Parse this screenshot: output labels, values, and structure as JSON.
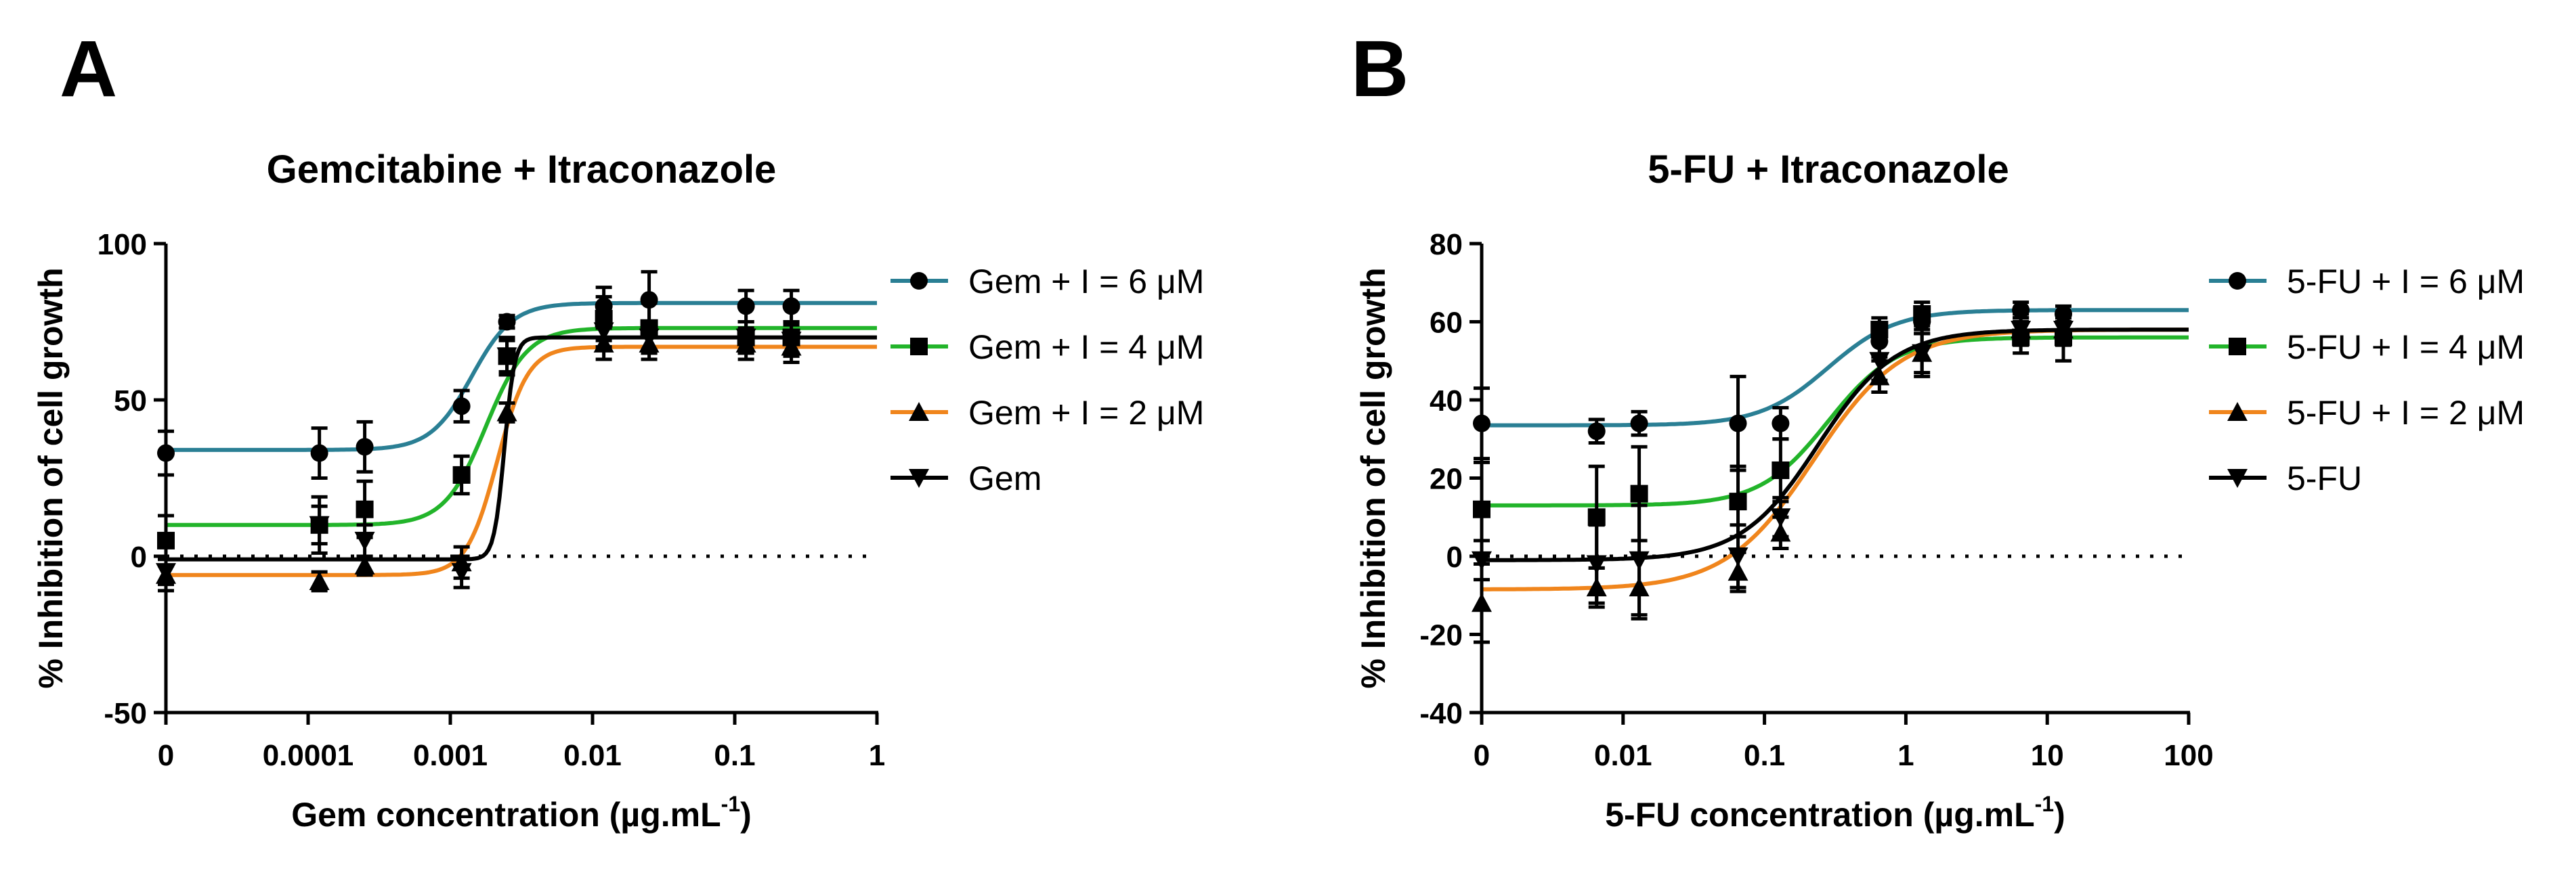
{
  "panels": [
    {
      "letter": "A"
    },
    {
      "letter": "B"
    }
  ],
  "chart_data": [
    {
      "type": "line",
      "panel": "A",
      "title": "Gemcitabine + Itraconazole",
      "xlabel": "Gem concentration (µg.mL",
      "xlabel_sup": "-1",
      "xlabel_close": ")",
      "ylabel": "% Inhibition of cell growth",
      "xscale": "log",
      "xlim": [
        1e-05,
        1
      ],
      "ylim": [
        -50,
        100
      ],
      "yticks": [
        -50,
        0,
        50,
        100
      ],
      "xticks": [
        {
          "value": 1e-05,
          "label": "0"
        },
        {
          "value": 0.0001,
          "label": "0.0001"
        },
        {
          "value": 0.001,
          "label": "0.001"
        },
        {
          "value": 0.01,
          "label": "0.01"
        },
        {
          "value": 0.1,
          "label": "0.1"
        },
        {
          "value": 1,
          "label": "1"
        }
      ],
      "reference_line": 0,
      "legend_position": "right",
      "series": [
        {
          "name": "Gem + I = 6 μM",
          "color": "#2a7f94",
          "marker": "circle",
          "x": [
            1e-05,
            0.00012,
            0.00025,
            0.0012,
            0.0025,
            0.012,
            0.025,
            0.12,
            0.25
          ],
          "y": [
            33,
            33,
            35,
            48,
            75,
            80,
            82,
            80,
            80
          ],
          "err": [
            7,
            8,
            8,
            5,
            2,
            6,
            9,
            5,
            5
          ],
          "fit": {
            "bottom": 34,
            "top": 81,
            "logEC50": -2.85,
            "hill": 3
          }
        },
        {
          "name": "Gem + I = 4 μM",
          "color": "#22b42a",
          "marker": "square",
          "x": [
            1e-05,
            0.00012,
            0.00025,
            0.0012,
            0.0025,
            0.012,
            0.025,
            0.12,
            0.25
          ],
          "y": [
            5,
            10,
            15,
            26,
            64,
            76,
            73,
            70,
            70
          ],
          "err": [
            8,
            9,
            9,
            6,
            5,
            7,
            8,
            5,
            5
          ],
          "fit": {
            "bottom": 10,
            "top": 73,
            "logEC50": -2.75,
            "hill": 3
          }
        },
        {
          "name": "Gem + I = 2 μM",
          "color": "#f0851c",
          "marker": "triangle",
          "x": [
            1e-05,
            0.00012,
            0.00025,
            0.0012,
            0.0025,
            0.012,
            0.025,
            0.12,
            0.25
          ],
          "y": [
            -6,
            -8,
            -3,
            -2,
            46,
            68,
            68,
            68,
            67
          ],
          "err": [
            5,
            3,
            3,
            5,
            3,
            5,
            5,
            5,
            5
          ],
          "fit": {
            "bottom": -6,
            "top": 67,
            "logEC50": -2.67,
            "hill": 4
          }
        },
        {
          "name": "Gem",
          "color": "#000000",
          "marker": "inverted-triangle",
          "x": [
            1e-05,
            0.00012,
            0.00025,
            0.0012,
            0.0025,
            0.012,
            0.025,
            0.12,
            0.25
          ],
          "y": [
            -5,
            10,
            5,
            -5,
            64,
            72,
            70,
            70,
            69
          ],
          "err": [
            4,
            6,
            5,
            5,
            6,
            5,
            5,
            5,
            5
          ],
          "fit": {
            "bottom": -1,
            "top": 70,
            "logEC50": -2.62,
            "hill": 12
          }
        }
      ]
    },
    {
      "type": "line",
      "panel": "B",
      "title": "5-FU + Itraconazole",
      "xlabel": "5-FU concentration  (µg.mL",
      "xlabel_sup": "-1",
      "xlabel_close": ")",
      "ylabel": "% Inhibition of cell growth",
      "xscale": "log",
      "xlim": [
        0.001,
        100
      ],
      "ylim": [
        -40,
        80
      ],
      "yticks": [
        -40,
        -20,
        0,
        20,
        40,
        60,
        80
      ],
      "xticks": [
        {
          "value": 0.001,
          "label": "0"
        },
        {
          "value": 0.01,
          "label": "0.01"
        },
        {
          "value": 0.1,
          "label": "0.1"
        },
        {
          "value": 1,
          "label": "1"
        },
        {
          "value": 10,
          "label": "10"
        },
        {
          "value": 100,
          "label": "100"
        }
      ],
      "reference_line": 0,
      "legend_position": "right",
      "series": [
        {
          "name": "5-FU + I = 6 μM",
          "color": "#2a7f94",
          "marker": "circle",
          "x": [
            0.001,
            0.0065,
            0.013,
            0.065,
            0.13,
            0.65,
            1.3,
            6.5,
            13
          ],
          "y": [
            34,
            32,
            34,
            34,
            34,
            55,
            60,
            63,
            62
          ],
          "err": [
            9,
            3,
            3,
            12,
            4,
            4,
            3,
            2,
            2
          ],
          "fit": {
            "bottom": 33.5,
            "top": 63,
            "logEC50": -0.55,
            "hill": 1.8
          }
        },
        {
          "name": "5-FU + I = 4 μM",
          "color": "#22b42a",
          "marker": "square",
          "x": [
            0.001,
            0.0065,
            0.013,
            0.065,
            0.13,
            0.65,
            1.3,
            6.5,
            13
          ],
          "y": [
            12,
            10,
            16,
            14,
            22,
            58,
            62,
            56,
            56
          ],
          "err": [
            12,
            13,
            12,
            9,
            8,
            3,
            3,
            4,
            6
          ],
          "fit": {
            "bottom": 13,
            "top": 56,
            "logEC50": -0.55,
            "hill": 1.8
          }
        },
        {
          "name": "5-FU + I = 2 μM",
          "color": "#f0851c",
          "marker": "triangle",
          "x": [
            0.001,
            0.0065,
            0.013,
            0.065,
            0.13,
            0.65,
            1.3,
            6.5,
            13
          ],
          "y": [
            -12,
            -8,
            -8,
            -4,
            6,
            46,
            52,
            58,
            58
          ],
          "err": [
            10,
            5,
            8,
            5,
            4,
            4,
            5,
            3,
            3
          ],
          "fit": {
            "bottom": -8.5,
            "top": 58,
            "logEC50": -0.65,
            "hill": 1.4
          }
        },
        {
          "name": "5-FU",
          "color": "#000000",
          "marker": "inverted-triangle",
          "x": [
            0.001,
            0.0065,
            0.013,
            0.065,
            0.13,
            0.65,
            1.3,
            6.5,
            13
          ],
          "y": [
            -1,
            -2,
            -1,
            0,
            10,
            50,
            52,
            58,
            58
          ],
          "err": [
            5,
            10,
            14,
            8,
            5,
            5,
            6,
            4,
            4
          ],
          "fit": {
            "bottom": -1,
            "top": 58,
            "logEC50": -0.62,
            "hill": 1.6
          }
        }
      ]
    }
  ]
}
